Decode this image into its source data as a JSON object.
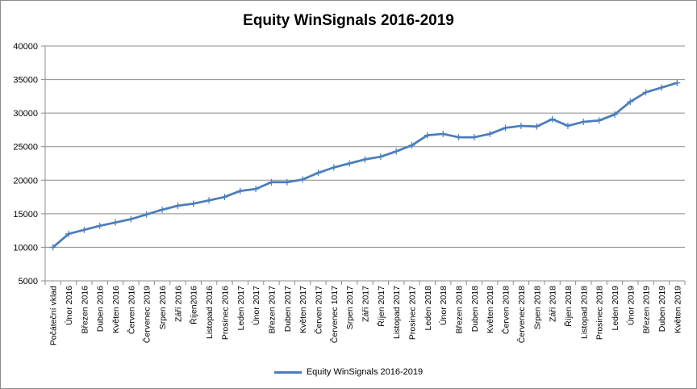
{
  "chart_data": {
    "type": "line",
    "title": "Equity WinSignals 2016-2019",
    "xlabel": "",
    "ylabel": "",
    "ylim": [
      5000,
      40000
    ],
    "yticks": [
      5000,
      10000,
      15000,
      20000,
      25000,
      30000,
      35000,
      40000
    ],
    "grid": true,
    "legend_position": "bottom",
    "line_color": "#4a7ebb",
    "categories": [
      "Počáteční vklad",
      "Únor 2016",
      "Březen 2016",
      "Duben 2016",
      "Květen 2016",
      "Červen 2016",
      "Červenec 2019",
      "Srpen 2016",
      "Září 2016",
      "Říjen2016",
      "Listopad 2016",
      "Prosinec 2016",
      "Leden 2017",
      "Únor 2017",
      "Březen 2017",
      "Duben 2017",
      "Květen 2017",
      "Červen 2017",
      "Červenec 1017",
      "Srpen 2017",
      "Září 2017",
      "Říjen 2017",
      "Listopad 2017",
      "Prosinec 2017",
      "Leden 2018",
      "Únor 2018",
      "Březen 2018",
      "Duben 2018",
      "Květen 2018",
      "Červen 2018",
      "Červenec 2018",
      "Srpen 2018",
      "Září 2018",
      "Říjen 2018",
      "Listopad 2018",
      "Prosinec 2018",
      "Leden 2019",
      "Únor 2019",
      "Březen 2019",
      "Duben 2019",
      "Květen 2019"
    ],
    "series": [
      {
        "name": "Equity WinSignals 2016-2019",
        "values": [
          10000,
          12000,
          12600,
          13200,
          13700,
          14200,
          14900,
          15600,
          16200,
          16500,
          17000,
          17500,
          18400,
          18700,
          19700,
          19700,
          20100,
          21100,
          21900,
          22500,
          23100,
          23500,
          24300,
          25200,
          26700,
          26900,
          26400,
          26400,
          26900,
          27800,
          28100,
          28000,
          29100,
          28100,
          28700,
          28900,
          29800,
          31700,
          33100,
          33800,
          34500
        ]
      }
    ]
  }
}
